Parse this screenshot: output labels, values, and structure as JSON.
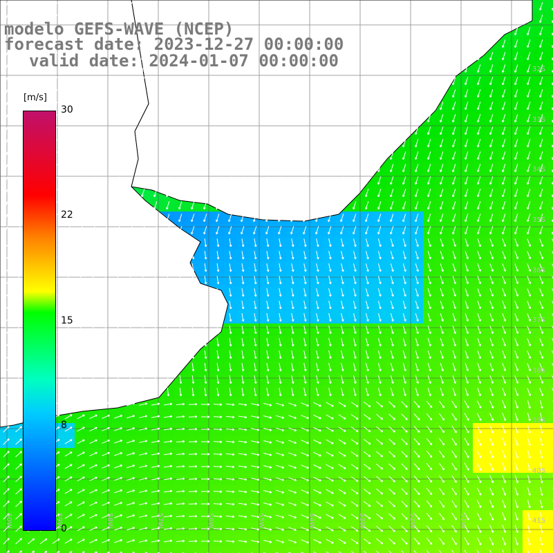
{
  "header": {
    "line1": "modelo GEFS-WAVE (NCEP)",
    "line2": "forecast date: 2023-12-27 00:00:00",
    "line3": "valid date: 2024-01-07 00:00:00"
  },
  "colorbar": {
    "unit": "[m/s]",
    "ticks": [
      "30",
      "22",
      "15",
      "8",
      "0"
    ],
    "colors": [
      "#0000ff",
      "#00ccff",
      "#00ff00",
      "#ffff00",
      "#ff0000",
      "#c0106b"
    ]
  },
  "lat_labels": [
    "32S",
    "33S",
    "34S",
    "35S",
    "36S",
    "37S",
    "38S",
    "39S",
    "40S",
    "41S"
  ],
  "lon_labels": [
    "60W",
    "59W",
    "58W",
    "57W",
    "56W",
    "55W",
    "54W",
    "53W",
    "52W",
    "51W"
  ]
}
